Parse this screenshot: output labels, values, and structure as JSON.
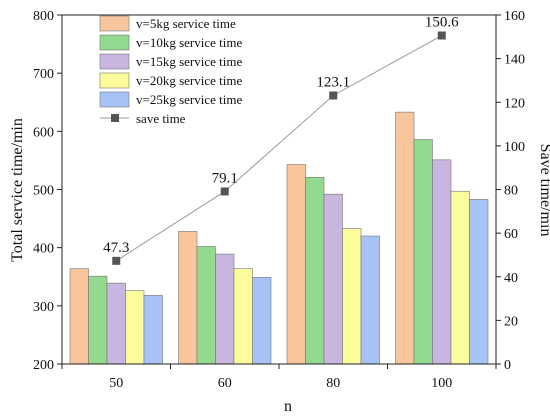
{
  "chart_data": {
    "type": "bar",
    "categories": [
      "50",
      "60",
      "80",
      "100"
    ],
    "xlabel": "n",
    "ylabel": "Total service time/min",
    "y2label": "Save time/min",
    "ylim": [
      200,
      800
    ],
    "yticks": [
      200,
      300,
      400,
      500,
      600,
      700,
      800
    ],
    "y2lim": [
      0,
      160
    ],
    "y2ticks": [
      0,
      20,
      40,
      60,
      80,
      100,
      120,
      140,
      160
    ],
    "legend_position": "top-left",
    "grid": false,
    "series": [
      {
        "name": "v=5kg service time",
        "type": "bar",
        "axis": "left",
        "color": "#F9C59C",
        "values": [
          364,
          428,
          543,
          633
        ]
      },
      {
        "name": "v=10kg service time",
        "type": "bar",
        "axis": "left",
        "color": "#93D98F",
        "values": [
          351,
          402,
          521,
          586
        ]
      },
      {
        "name": "v=15kg service time",
        "type": "bar",
        "axis": "left",
        "color": "#C8B5E0",
        "values": [
          339,
          389,
          492,
          551
        ]
      },
      {
        "name": "v=20kg service time",
        "type": "bar",
        "axis": "left",
        "color": "#FCFC9C",
        "values": [
          326,
          364,
          433,
          497
        ]
      },
      {
        "name": "v=25kg service time",
        "type": "bar",
        "axis": "left",
        "color": "#A7C3F5",
        "values": [
          318,
          349,
          420,
          483
        ]
      },
      {
        "name": "save time",
        "type": "line",
        "axis": "right",
        "color": "#555555",
        "values": [
          47.3,
          79.1,
          123.1,
          150.6
        ],
        "labels": [
          "47.3",
          "79.1",
          "123.1",
          "150.6"
        ]
      }
    ]
  }
}
